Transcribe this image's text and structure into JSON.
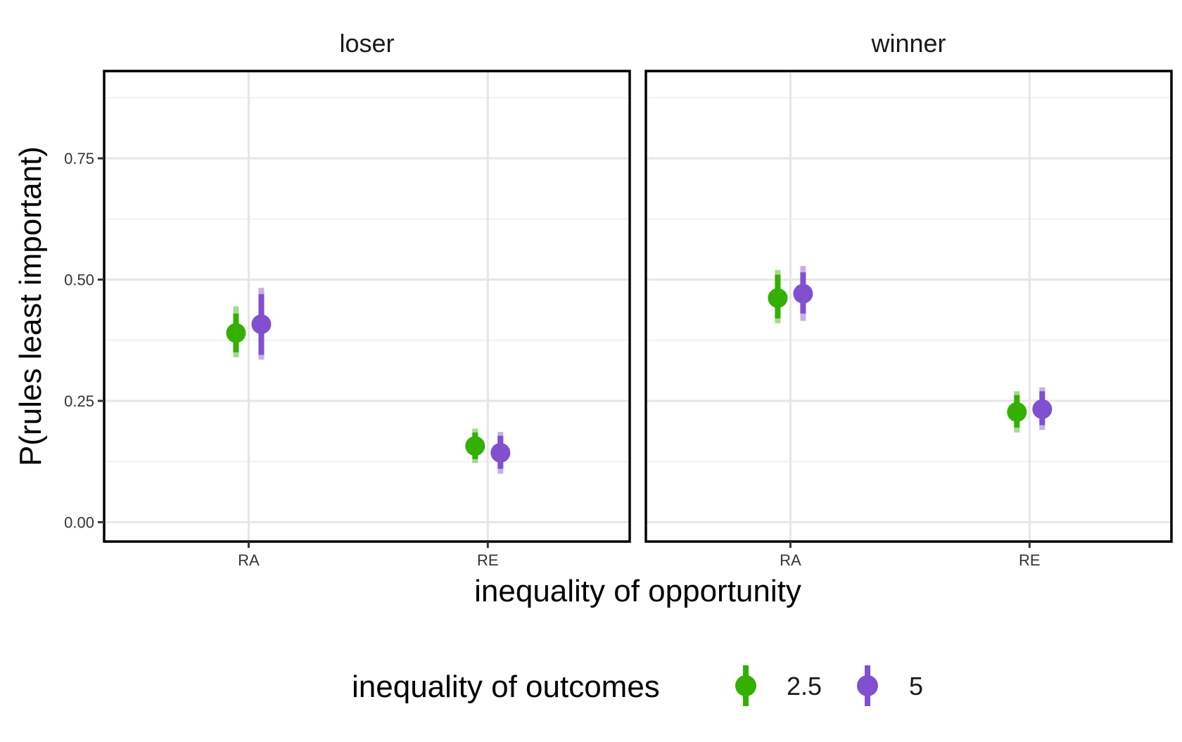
{
  "chart_data": {
    "type": "scatter",
    "subtype": "pointrange",
    "facets": [
      "loser",
      "winner"
    ],
    "categories": [
      "RA",
      "RE"
    ],
    "xlabel": "inequality of opportunity",
    "ylabel": "P(rules least important)",
    "ylim": [
      -0.04,
      0.93
    ],
    "yticks": [
      0,
      0.25,
      0.5,
      0.75
    ],
    "ytick_labels": [
      "0.00",
      "0.25",
      "0.50",
      "0.75"
    ],
    "grid": true,
    "legend": {
      "title": "inequality of outcomes",
      "position": "bottom"
    },
    "series": [
      {
        "name": "2.5",
        "color": "#33b000",
        "points": [
          {
            "facet": "loser",
            "category": "RA",
            "y": 0.39,
            "inner": [
              0.35,
              0.43
            ],
            "outer": [
              0.34,
              0.445
            ]
          },
          {
            "facet": "loser",
            "category": "RE",
            "y": 0.157,
            "inner": [
              0.13,
              0.185
            ],
            "outer": [
              0.122,
              0.193
            ]
          },
          {
            "facet": "winner",
            "category": "RA",
            "y": 0.462,
            "inner": [
              0.42,
              0.51
            ],
            "outer": [
              0.41,
              0.52
            ]
          },
          {
            "facet": "winner",
            "category": "RE",
            "y": 0.227,
            "inner": [
              0.195,
              0.262
            ],
            "outer": [
              0.185,
              0.27
            ]
          }
        ]
      },
      {
        "name": "5",
        "color": "#8050d0",
        "points": [
          {
            "facet": "loser",
            "category": "RA",
            "y": 0.408,
            "inner": [
              0.345,
              0.47
            ],
            "outer": [
              0.335,
              0.483
            ]
          },
          {
            "facet": "loser",
            "category": "RE",
            "y": 0.143,
            "inner": [
              0.11,
              0.178
            ],
            "outer": [
              0.1,
              0.186
            ]
          },
          {
            "facet": "winner",
            "category": "RA",
            "y": 0.471,
            "inner": [
              0.43,
              0.515
            ],
            "outer": [
              0.415,
              0.528
            ]
          },
          {
            "facet": "winner",
            "category": "RE",
            "y": 0.233,
            "inner": [
              0.2,
              0.27
            ],
            "outer": [
              0.19,
              0.278
            ]
          }
        ]
      }
    ]
  }
}
